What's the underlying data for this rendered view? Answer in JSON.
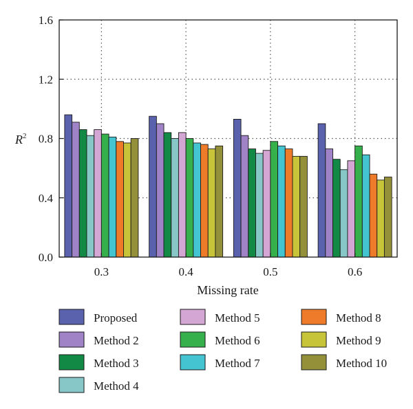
{
  "chart_data": {
    "type": "bar",
    "xlabel": "Missing rate",
    "ylabel": "R",
    "ylabel_superscript": "2",
    "categories": [
      "0.3",
      "0.4",
      "0.5",
      "0.6"
    ],
    "ylim": [
      0.0,
      1.6
    ],
    "yticks": [
      "0.0",
      "0.4",
      "0.8",
      "1.2",
      "1.6"
    ],
    "grid": "dotted",
    "legend_position": "bottom",
    "series": [
      {
        "name": "Proposed",
        "color": "#5a62ad",
        "values": [
          0.96,
          0.95,
          0.93,
          0.9
        ]
      },
      {
        "name": "Method 2",
        "color": "#9f83c6",
        "values": [
          0.91,
          0.9,
          0.82,
          0.73
        ]
      },
      {
        "name": "Method 3",
        "color": "#128a45",
        "values": [
          0.86,
          0.84,
          0.73,
          0.66
        ]
      },
      {
        "name": "Method 4",
        "color": "#88c7c8",
        "values": [
          0.82,
          0.8,
          0.7,
          0.59
        ]
      },
      {
        "name": "Method 5",
        "color": "#d3a6d4",
        "values": [
          0.86,
          0.84,
          0.72,
          0.65
        ]
      },
      {
        "name": "Method 6",
        "color": "#36b04a",
        "values": [
          0.83,
          0.8,
          0.78,
          0.75
        ]
      },
      {
        "name": "Method 7",
        "color": "#44c3d1",
        "values": [
          0.81,
          0.77,
          0.75,
          0.69
        ]
      },
      {
        "name": "Method 8",
        "color": "#ee7b2a",
        "values": [
          0.78,
          0.76,
          0.73,
          0.56
        ]
      },
      {
        "name": "Method 9",
        "color": "#c8c43a",
        "values": [
          0.77,
          0.73,
          0.68,
          0.52
        ]
      },
      {
        "name": "Method 10",
        "color": "#94903a",
        "values": [
          0.8,
          0.75,
          0.68,
          0.54
        ]
      }
    ]
  }
}
